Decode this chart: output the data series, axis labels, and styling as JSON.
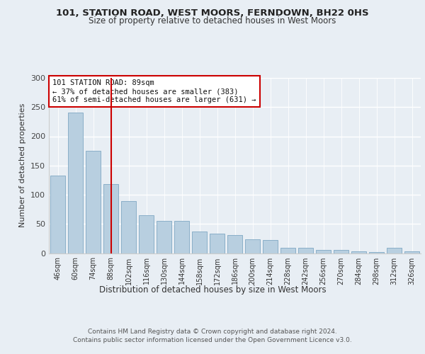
{
  "title": "101, STATION ROAD, WEST MOORS, FERNDOWN, BH22 0HS",
  "subtitle": "Size of property relative to detached houses in West Moors",
  "xlabel": "Distribution of detached houses by size in West Moors",
  "ylabel": "Number of detached properties",
  "categories": [
    "46sqm",
    "60sqm",
    "74sqm",
    "88sqm",
    "102sqm",
    "116sqm",
    "130sqm",
    "144sqm",
    "158sqm",
    "172sqm",
    "186sqm",
    "200sqm",
    "214sqm",
    "228sqm",
    "242sqm",
    "256sqm",
    "270sqm",
    "284sqm",
    "298sqm",
    "312sqm",
    "326sqm"
  ],
  "values": [
    133,
    240,
    175,
    118,
    89,
    65,
    55,
    55,
    37,
    33,
    31,
    24,
    22,
    9,
    9,
    5,
    5,
    3,
    2,
    9,
    3
  ],
  "bar_color": "#b8cfe0",
  "bar_edge_color": "#8aafc8",
  "highlight_bar_index": 3,
  "highlight_color": "#cc0000",
  "annotation_text": "101 STATION ROAD: 89sqm\n← 37% of detached houses are smaller (383)\n61% of semi-detached houses are larger (631) →",
  "annotation_box_color": "#ffffff",
  "annotation_box_edge_color": "#cc0000",
  "ylim": [
    0,
    300
  ],
  "yticks": [
    0,
    50,
    100,
    150,
    200,
    250,
    300
  ],
  "footer_line1": "Contains HM Land Registry data © Crown copyright and database right 2024.",
  "footer_line2": "Contains public sector information licensed under the Open Government Licence v3.0.",
  "background_color": "#e8eef4",
  "plot_background_color": "#e8eef4"
}
